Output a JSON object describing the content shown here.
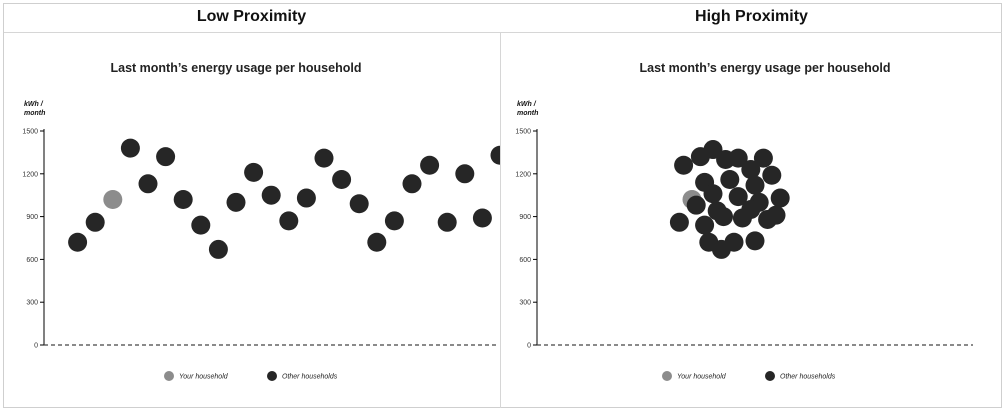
{
  "panels": [
    {
      "heading": "Low Proximity"
    },
    {
      "heading": "High Proximity"
    }
  ],
  "colors": {
    "your": "#8c8c8c",
    "other": "#262626",
    "axis": "#000000"
  },
  "chart_data": [
    {
      "type": "scatter",
      "title": "Last month’s energy usage per household",
      "ylabel": "kWh / month",
      "ylabel_lines": [
        "kWh /",
        "month"
      ],
      "ylim": [
        0,
        1500
      ],
      "yticks": [
        1500,
        1200,
        900,
        600,
        300,
        0
      ],
      "legend": {
        "placement": "bottom-center",
        "entries": [
          "Your household",
          "Other households"
        ]
      },
      "series": [
        {
          "name": "Your household",
          "points": [
            [
              3,
              1020
            ]
          ]
        },
        {
          "name": "Other households",
          "points": [
            [
              1,
              720
            ],
            [
              2,
              860
            ],
            [
              4,
              1380
            ],
            [
              5,
              1130
            ],
            [
              6,
              1320
            ],
            [
              7,
              1020
            ],
            [
              8,
              840
            ],
            [
              9,
              670
            ],
            [
              10,
              1000
            ],
            [
              11,
              1210
            ],
            [
              12,
              1050
            ],
            [
              13,
              870
            ],
            [
              14,
              1030
            ],
            [
              15,
              1310
            ],
            [
              16,
              1160
            ],
            [
              17,
              990
            ],
            [
              18,
              720
            ],
            [
              19,
              870
            ],
            [
              20,
              1130
            ],
            [
              21,
              1260
            ],
            [
              22,
              860
            ],
            [
              23,
              1200
            ],
            [
              24,
              890
            ],
            [
              25,
              1330
            ]
          ]
        }
      ]
    },
    {
      "type": "scatter",
      "title": "Last month’s energy usage per household",
      "ylabel": "kWh / month",
      "ylabel_lines": [
        "kWh /",
        "month"
      ],
      "ylim": [
        0,
        1500
      ],
      "yticks": [
        1500,
        1200,
        900,
        600,
        300,
        0
      ],
      "legend": {
        "placement": "bottom-center",
        "entries": [
          "Your household",
          "Other households"
        ]
      },
      "series": [
        {
          "name": "Your household",
          "points": [
            [
              4.0,
              1020
            ]
          ]
        },
        {
          "name": "Other households",
          "points": [
            [
              5.0,
              1370
            ],
            [
              6.2,
              1310
            ],
            [
              7.4,
              1310
            ],
            [
              3.6,
              1260
            ],
            [
              4.4,
              1320
            ],
            [
              5.6,
              1300
            ],
            [
              6.8,
              1230
            ],
            [
              4.6,
              1140
            ],
            [
              5.8,
              1160
            ],
            [
              7.0,
              1120
            ],
            [
              7.8,
              1190
            ],
            [
              3.4,
              860
            ],
            [
              4.2,
              980
            ],
            [
              5.2,
              940
            ],
            [
              6.2,
              1040
            ],
            [
              7.2,
              1000
            ],
            [
              8.2,
              1030
            ],
            [
              5.0,
              1060
            ],
            [
              6.4,
              890
            ],
            [
              7.6,
              880
            ],
            [
              4.6,
              840
            ],
            [
              5.5,
              900
            ],
            [
              6.8,
              950
            ],
            [
              8.0,
              910
            ],
            [
              4.8,
              720
            ],
            [
              5.4,
              670
            ],
            [
              6.0,
              720
            ],
            [
              7.0,
              730
            ]
          ]
        }
      ]
    }
  ]
}
